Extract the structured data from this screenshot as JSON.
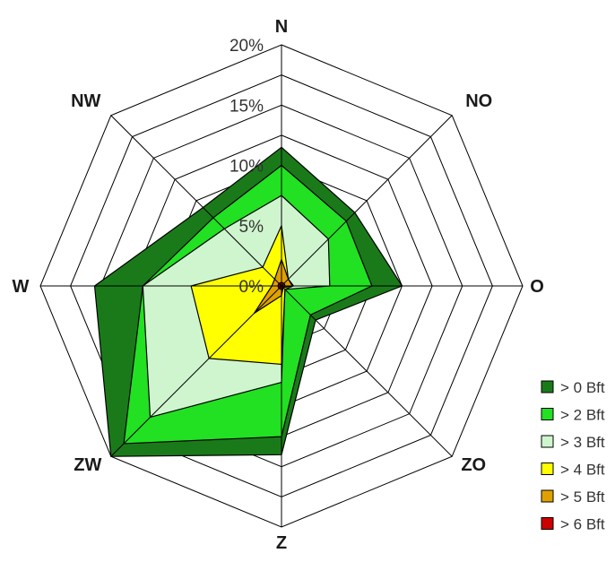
{
  "chart_data": {
    "type": "radar",
    "title": "",
    "directions": [
      "N",
      "NO",
      "O",
      "ZO",
      "Z",
      "ZW",
      "W",
      "NW"
    ],
    "rlim": [
      0,
      20
    ],
    "tick_values": [
      0,
      5,
      10,
      15,
      20
    ],
    "tick_labels": [
      "0%",
      "5%",
      "10%",
      "15%",
      "20%"
    ],
    "grid": true,
    "legend_position": "bottom-right",
    "series": [
      {
        "name": "> 0 Bft",
        "color": "#1a7a1a",
        "values": [
          11.5,
          8.6,
          10.0,
          4.0,
          14.0,
          20.0,
          15.5,
          9.2
        ]
      },
      {
        "name": "> 2 Bft",
        "color": "#22e022",
        "values": [
          10.0,
          7.6,
          7.5,
          3.4,
          12.5,
          18.5,
          11.5,
          8.0
        ]
      },
      {
        "name": "> 3 Bft",
        "color": "#cff5cf",
        "values": [
          7.5,
          5.5,
          4.0,
          0.4,
          8.0,
          15.4,
          11.5,
          6.7
        ]
      },
      {
        "name": "> 4 Bft",
        "color": "#ffff00",
        "values": [
          5.0,
          0.8,
          1.0,
          0.4,
          6.5,
          8.5,
          7.5,
          2.2
        ]
      },
      {
        "name": "> 5 Bft",
        "color": "#e0a000",
        "values": [
          2.2,
          0.8,
          0.9,
          0.2,
          0.8,
          3.2,
          0.8,
          0.8
        ]
      },
      {
        "name": "> 6 Bft",
        "color": "#cc0000",
        "values": [
          0.3,
          0.3,
          0.3,
          0.2,
          0.3,
          0.3,
          0.3,
          0.3
        ]
      }
    ]
  }
}
